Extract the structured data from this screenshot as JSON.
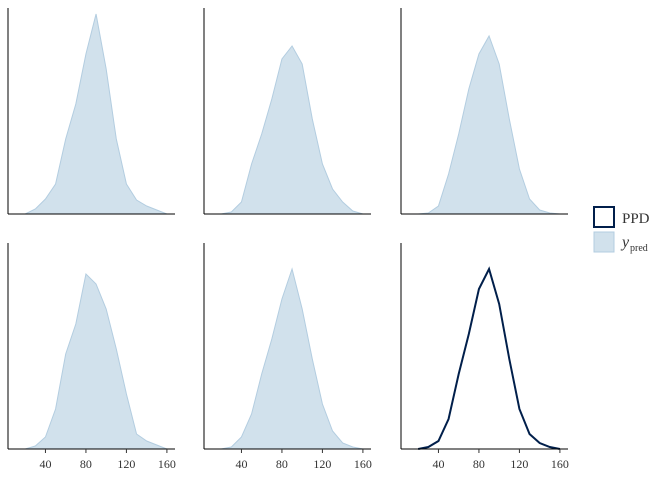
{
  "chart_data": [
    {
      "type": "area",
      "x": [
        20,
        30,
        40,
        50,
        60,
        70,
        80,
        90,
        100,
        110,
        120,
        130,
        140,
        150,
        160
      ],
      "series": [
        {
          "color": "#d1e1ec",
          "values": [
            0,
            0.0005,
            0.0015,
            0.003,
            0.0075,
            0.011,
            0.016,
            0.02,
            0.0145,
            0.0075,
            0.003,
            0.0014,
            0.0008,
            0.0004,
            0
          ]
        }
      ],
      "xlim": [
        3,
        168
      ],
      "ylim": [
        0,
        0.0206
      ]
    },
    {
      "type": "area",
      "x": [
        20,
        30,
        40,
        50,
        60,
        70,
        80,
        90,
        100,
        110,
        120,
        130,
        140,
        150,
        160
      ],
      "series": [
        {
          "color": "#d1e1ec",
          "values": [
            0,
            0.0002,
            0.0012,
            0.005,
            0.008,
            0.0115,
            0.0155,
            0.0168,
            0.015,
            0.0095,
            0.005,
            0.0025,
            0.0012,
            0.0003,
            0
          ]
        }
      ],
      "xlim": [
        3,
        168
      ],
      "ylim": [
        0,
        0.0206
      ]
    },
    {
      "type": "area",
      "x": [
        20,
        30,
        40,
        50,
        60,
        70,
        80,
        90,
        100,
        110,
        120,
        130,
        140,
        150,
        160
      ],
      "series": [
        {
          "color": "#d1e1ec",
          "values": [
            0,
            0.0001,
            0.0008,
            0.004,
            0.008,
            0.0125,
            0.016,
            0.0178,
            0.015,
            0.0095,
            0.0045,
            0.0015,
            0.0004,
            0.0001,
            0
          ]
        }
      ],
      "xlim": [
        3,
        168
      ],
      "ylim": [
        0,
        0.0206
      ]
    },
    {
      "type": "area",
      "x": [
        20,
        30,
        40,
        50,
        60,
        70,
        80,
        90,
        100,
        110,
        120,
        130,
        140,
        150,
        160
      ],
      "series": [
        {
          "color": "#d1e1ec",
          "values": [
            0,
            0.0003,
            0.0012,
            0.004,
            0.0095,
            0.0125,
            0.0175,
            0.0165,
            0.014,
            0.01,
            0.0055,
            0.0015,
            0.0008,
            0.0004,
            0
          ]
        }
      ],
      "xlim": [
        3,
        168
      ],
      "ylim": [
        0,
        0.0206
      ],
      "xticks": [
        40,
        80,
        120,
        160
      ]
    },
    {
      "type": "area",
      "x": [
        20,
        30,
        40,
        50,
        60,
        70,
        80,
        90,
        100,
        110,
        120,
        130,
        140,
        150,
        160
      ],
      "series": [
        {
          "color": "#d1e1ec",
          "values": [
            0,
            0.0002,
            0.0012,
            0.0035,
            0.0075,
            0.011,
            0.015,
            0.018,
            0.014,
            0.009,
            0.0045,
            0.0018,
            0.0006,
            0.0002,
            0
          ]
        }
      ],
      "xlim": [
        3,
        168
      ],
      "ylim": [
        0,
        0.0206
      ],
      "xticks": [
        40,
        80,
        120,
        160
      ]
    },
    {
      "type": "line",
      "x": [
        20,
        30,
        40,
        50,
        60,
        70,
        80,
        90,
        100,
        110,
        120,
        130,
        140,
        150,
        160
      ],
      "series": [
        {
          "color": "#011f4b",
          "values": [
            0,
            0.0002,
            0.0008,
            0.003,
            0.0075,
            0.0115,
            0.016,
            0.018,
            0.0145,
            0.009,
            0.004,
            0.0015,
            0.0006,
            0.0002,
            0
          ]
        }
      ],
      "xlim": [
        3,
        168
      ],
      "ylim": [
        0,
        0.0206
      ],
      "xticks": [
        40,
        80,
        120,
        160
      ]
    }
  ],
  "legend": [
    {
      "label": "PPD",
      "color": "#011f4b"
    },
    {
      "label": "y",
      "subscript": "pred",
      "color": "#d1e1ec"
    }
  ]
}
